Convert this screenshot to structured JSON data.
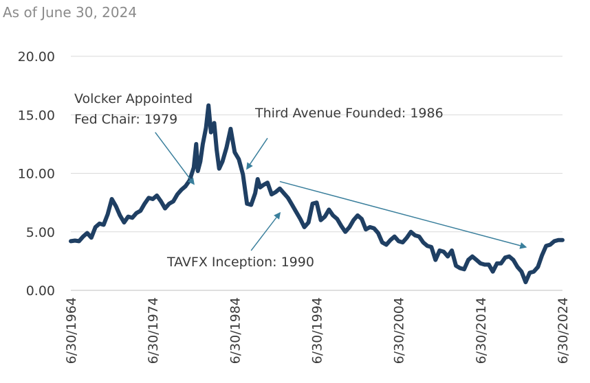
{
  "header": {
    "subtitle": "As of June 30, 2024"
  },
  "chart_data": {
    "type": "line",
    "title": "",
    "subtitle": "As of June 30, 2024",
    "xlabel": "",
    "ylabel": "",
    "ylim": [
      0,
      20
    ],
    "xlim": [
      1964.5,
      2024.5
    ],
    "grid": true,
    "y_ticks": [
      "0.00",
      "5.00",
      "10.00",
      "15.00",
      "20.00"
    ],
    "x_ticks": [
      "6/30/1964",
      "6/30/1974",
      "6/30/1984",
      "6/30/1994",
      "6/30/2004",
      "6/30/2014",
      "6/30/2024"
    ],
    "colors": {
      "series": "#1f3f63",
      "arrow": "#3a7f9c",
      "grid": "#d9d9d9"
    },
    "series": [
      {
        "x": [
          1964.5,
          1965.0,
          1965.5,
          1966.0,
          1966.5,
          1967.0,
          1967.5,
          1968.0,
          1968.5,
          1969.0,
          1969.5,
          1970.0,
          1970.5,
          1971.0,
          1971.5,
          1972.0,
          1972.5,
          1973.0,
          1973.5,
          1974.0,
          1974.5,
          1975.0,
          1975.5,
          1976.0,
          1976.5,
          1977.0,
          1977.5,
          1978.0,
          1978.5,
          1979.0,
          1979.5,
          1979.8,
          1980.0,
          1980.3,
          1980.6,
          1981.0,
          1981.3,
          1981.6,
          1982.0,
          1982.3,
          1982.6,
          1983.0,
          1983.5,
          1984.0,
          1984.5,
          1985.0,
          1985.5,
          1986.0,
          1986.5,
          1987.0,
          1987.3,
          1987.6,
          1988.0,
          1988.5,
          1989.0,
          1989.5,
          1990.0,
          1990.5,
          1991.0,
          1991.5,
          1992.0,
          1992.5,
          1993.0,
          1993.5,
          1994.0,
          1994.5,
          1995.0,
          1995.5,
          1996.0,
          1996.5,
          1997.0,
          1997.5,
          1998.0,
          1998.5,
          1999.0,
          1999.5,
          2000.0,
          2000.5,
          2001.0,
          2001.5,
          2002.0,
          2002.5,
          2003.0,
          2003.5,
          2004.0,
          2004.5,
          2005.0,
          2005.5,
          2006.0,
          2006.5,
          2007.0,
          2007.5,
          2008.0,
          2008.5,
          2009.0,
          2009.5,
          2010.0,
          2010.5,
          2011.0,
          2011.5,
          2012.0,
          2012.5,
          2013.0,
          2013.5,
          2014.0,
          2014.5,
          2015.0,
          2015.5,
          2016.0,
          2016.5,
          2017.0,
          2017.5,
          2018.0,
          2018.5,
          2019.0,
          2019.5,
          2020.0,
          2020.5,
          2021.0,
          2021.5,
          2022.0,
          2022.5,
          2023.0,
          2023.5,
          2024.0,
          2024.5
        ],
        "values": [
          4.2,
          4.25,
          4.2,
          4.6,
          4.9,
          4.5,
          5.4,
          5.7,
          5.6,
          6.5,
          7.8,
          7.2,
          6.4,
          5.8,
          6.3,
          6.2,
          6.6,
          6.8,
          7.4,
          7.9,
          7.8,
          8.1,
          7.6,
          7.0,
          7.4,
          7.6,
          8.2,
          8.6,
          8.9,
          9.4,
          10.5,
          12.5,
          10.2,
          11.0,
          12.5,
          13.9,
          15.8,
          13.5,
          14.3,
          12.0,
          10.4,
          11.0,
          12.2,
          13.8,
          11.8,
          11.2,
          9.9,
          7.4,
          7.3,
          8.3,
          9.5,
          8.8,
          9.0,
          9.2,
          8.2,
          8.4,
          8.7,
          8.3,
          7.9,
          7.3,
          6.7,
          6.1,
          5.4,
          5.8,
          7.4,
          7.5,
          6.0,
          6.3,
          6.9,
          6.4,
          6.1,
          5.5,
          5.0,
          5.4,
          6.0,
          6.4,
          6.1,
          5.2,
          5.4,
          5.3,
          4.9,
          4.1,
          3.9,
          4.3,
          4.6,
          4.2,
          4.1,
          4.5,
          5.0,
          4.7,
          4.6,
          4.1,
          3.8,
          3.7,
          2.6,
          3.4,
          3.3,
          2.9,
          3.4,
          2.1,
          1.9,
          1.8,
          2.6,
          2.9,
          2.6,
          2.3,
          2.2,
          2.2,
          1.6,
          2.3,
          2.3,
          2.8,
          2.9,
          2.6,
          2.0,
          1.6,
          0.7,
          1.5,
          1.6,
          2.0,
          3.0,
          3.8,
          3.9,
          4.2,
          4.3,
          4.3
        ]
      }
    ],
    "annotations": [
      {
        "lines": [
          "Volcker Appointed",
          "Fed Chair: 1979"
        ],
        "arrow_to": [
          1979.5,
          9.1
        ],
        "arrow_from": [
          1974.8,
          13.5
        ]
      },
      {
        "lines": [
          "Third Avenue Founded: 1986"
        ],
        "arrow_to": [
          1986.0,
          10.4
        ],
        "arrow_from": [
          1988.5,
          13.0
        ]
      },
      {
        "lines": [
          "TAVFX Inception: 1990"
        ],
        "arrow_to": [
          1990.0,
          6.6
        ],
        "arrow_from": [
          1986.5,
          3.4
        ]
      }
    ],
    "trend_arrow": {
      "from": [
        1990.0,
        9.3
      ],
      "to": [
        2020.0,
        3.7
      ]
    }
  }
}
